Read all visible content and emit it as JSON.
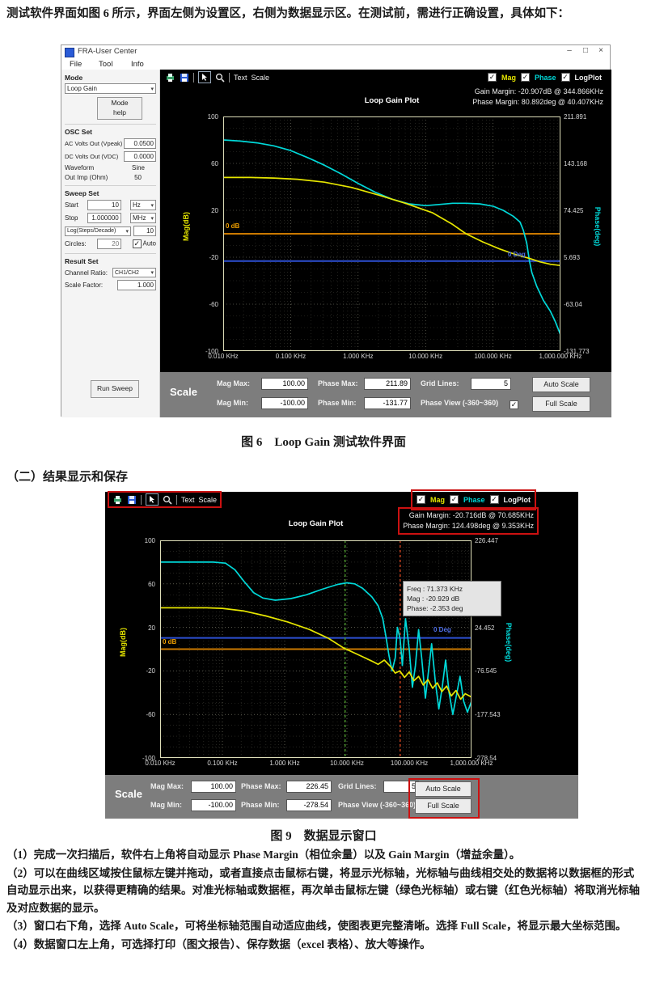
{
  "page": {
    "intro": "测试软件界面如图 6 所示，界面左侧为设置区，右侧为数据显示区。在测试前，需进行正确设置，具体如下：",
    "fig6_caption": "图 6　Loop Gain 测试软件界面",
    "section_heading": "（二）结果显示和保存",
    "fig9_caption": "图 9　数据显示窗口",
    "notes": [
      "（1）完成一次扫描后，软件右上角将自动显示 Phase Margin（相位余量）以及 Gain Margin（增益余量）。",
      "（2）可以在曲线区域按住鼠标左键并拖动，或者直接点击鼠标右键，将显示光标轴，光标轴与曲线相交处的数据将以数据框的形式自动显示出来，以获得更精确的结果。对准光标轴或数据框，再次单击鼠标左键（绿色光标轴）或右键（红色光标轴）将取消光标轴及对应数据的显示。",
      "（3）窗口右下角，选择 Auto Scale，可将坐标轴范围自动适应曲线，使图表更完整清晰。选择 Full Scale，将显示最大坐标范围。",
      "（4）数据窗口左上角，可选择打印（图文报告）、保存数据（excel 表格）、放大等操作。"
    ]
  },
  "icons": {
    "check": "✓",
    "caret": "▾"
  },
  "window": {
    "title": "FRA-User Center",
    "controls": {
      "min": "–",
      "max": "□",
      "close": "×"
    },
    "menu": [
      {
        "label": "File"
      },
      {
        "label": "Tool"
      },
      {
        "label": "Info"
      }
    ],
    "toolbar": {
      "text_menu": "Text",
      "scale_menu": "Scale",
      "mag": "Mag",
      "phase": "Phase",
      "logplot": "LogPlot"
    }
  },
  "panel": {
    "mode_title": "Mode",
    "mode_value": "Loop Gain",
    "mode_help": [
      "Mode",
      "help"
    ],
    "osc_title": "OSC Set",
    "ac_label": "AC Volts Out (Vpeak)",
    "ac_value": "0.0500",
    "dc_label": "DC Volts Out (VDC)",
    "dc_value": "0.0000",
    "wave_label": "Waveform",
    "wave_value": "Sine",
    "imp_label": "Out Imp (Ohm)",
    "imp_value": "50",
    "sweep_title": "Sweep Set",
    "start_label": "Start",
    "start_value": "10",
    "start_unit": "Hz",
    "stop_label": "Stop",
    "stop_value": "1.000000",
    "stop_unit": "MHz",
    "log_select": "Log(Steps/Decade)",
    "log_value": "10",
    "circles_label": "Circles:",
    "circles_value": "20",
    "auto_label": "Auto",
    "result_title": "Result Set",
    "channel_label": "Channel Ratio:",
    "channel_value": "CH1/CH2",
    "factor_label": "Scale Factor:",
    "factor_value": "1.000",
    "run_button": "Run Sweep"
  },
  "fig6_scale": {
    "title": "Scale",
    "mag_max_label": "Mag Max:",
    "mag_max": "100.00",
    "phase_max_label": "Phase Max:",
    "phase_max": "211.89",
    "grid_label": "Grid Lines:",
    "grid": "5",
    "auto_button": "Auto Scale",
    "mag_min_label": "Mag Min:",
    "mag_min": "-100.00",
    "phase_min_label": "Phase Min:",
    "phase_min": "-131.77",
    "view_label": "Phase View (-360~360)",
    "full_button": "Full Scale"
  },
  "fig9_scale": {
    "title": "Scale",
    "mag_max_label": "Mag Max:",
    "mag_max": "100.00",
    "phase_max_label": "Phase Max:",
    "phase_max": "226.45",
    "grid_label": "Grid Lines:",
    "grid": "5",
    "auto_button": "Auto Scale",
    "mag_min_label": "Mag Min:",
    "mag_min": "-100.00",
    "phase_min_label": "Phase Min:",
    "phase_min": "-278.54",
    "view_label": "Phase View (-360~360)",
    "full_button": "Full Scale"
  },
  "chart_data": [
    {
      "type": "line",
      "title": "Loop Gain Plot",
      "gain_margin": "Gain Margin: -20.907dB @ 344.866KHz",
      "phase_margin": "Phase Margin: 80.892deg @ 40.407KHz",
      "x_axis": {
        "scale": "log",
        "decades": 5,
        "tick_labels": [
          "0.010 KHz",
          "0.100 KHz",
          "1.000 KHz",
          "10.000 KHz",
          "100.000 KHz",
          "1,000.000 KHz"
        ]
      },
      "mag_axis": {
        "label": "Mag(dB)",
        "min": -100,
        "max": 100,
        "ticks": [
          100,
          60,
          20,
          -20,
          -60,
          -100
        ]
      },
      "phase_axis": {
        "label": "Phase(deg)",
        "tick_labels": [
          "211.891",
          "143.168",
          "74.425",
          "5.693",
          "-63.04",
          "-131.773"
        ]
      },
      "ref_lines": [
        {
          "y": 0,
          "color": "#cc7a00",
          "label": "0 dB"
        },
        {
          "y": -23.3,
          "color": "#2d4fd2",
          "label": "0 Deg"
        }
      ],
      "cursors": [],
      "series": [
        {
          "name": "Phase",
          "color": "#00d9d9",
          "points": [
            [
              0,
              80
            ],
            [
              0.05,
              79
            ],
            [
              0.1,
              77.5
            ],
            [
              0.15,
              75
            ],
            [
              0.2,
              71
            ],
            [
              0.25,
              65
            ],
            [
              0.3,
              58.5
            ],
            [
              0.35,
              51
            ],
            [
              0.4,
              43
            ],
            [
              0.45,
              35.5
            ],
            [
              0.5,
              29.5
            ],
            [
              0.55,
              25.5
            ],
            [
              0.6,
              24
            ],
            [
              0.64,
              25
            ],
            [
              0.68,
              26
            ],
            [
              0.72,
              26
            ],
            [
              0.76,
              25.5
            ],
            [
              0.8,
              23.5
            ],
            [
              0.83,
              20
            ],
            [
              0.86,
              15
            ],
            [
              0.88,
              10
            ],
            [
              0.89,
              3
            ],
            [
              0.9,
              -8
            ],
            [
              0.908,
              -23
            ],
            [
              0.915,
              -33
            ],
            [
              0.93,
              -45
            ],
            [
              0.95,
              -57
            ],
            [
              0.97,
              -66
            ],
            [
              0.985,
              -75
            ],
            [
              1,
              -86
            ]
          ]
        },
        {
          "name": "Mag",
          "color": "#e6e600",
          "points": [
            [
              0,
              48
            ],
            [
              0.08,
              48
            ],
            [
              0.15,
              47.5
            ],
            [
              0.22,
              46.5
            ],
            [
              0.3,
              44
            ],
            [
              0.38,
              39.5
            ],
            [
              0.46,
              33
            ],
            [
              0.54,
              26
            ],
            [
              0.62,
              18
            ],
            [
              0.68,
              8
            ],
            [
              0.72,
              0
            ],
            [
              0.77,
              -7
            ],
            [
              0.82,
              -13
            ],
            [
              0.87,
              -18
            ],
            [
              0.908,
              -21
            ],
            [
              0.94,
              -24
            ],
            [
              0.97,
              -26
            ],
            [
              1,
              -27
            ]
          ]
        }
      ]
    },
    {
      "type": "line",
      "title": "Loop Gain Plot",
      "gain_margin": "Gain Margin: -20.716dB @ 70.685KHz",
      "phase_margin": "Phase Margin: 124.498deg @ 9.353KHz",
      "x_axis": {
        "scale": "log",
        "decades": 5,
        "tick_labels": [
          "0.010 KHz",
          "0.100 KHz",
          "1.000 KHz",
          "10.000 KHz",
          "100.000 KHz",
          "1,000.000 KHz"
        ]
      },
      "mag_axis": {
        "label": "Mag(dB)",
        "min": -100,
        "max": 100,
        "ticks": [
          100,
          60,
          20,
          -20,
          -60,
          -100
        ]
      },
      "phase_axis": {
        "label": "Phase(deg)",
        "tick_labels": [
          "226.447",
          "125.45",
          "24.452",
          "-76.545",
          "-177.543",
          "-278.54"
        ]
      },
      "ref_lines": [
        {
          "y": 0,
          "color": "#cc7a00",
          "label": "0 dB"
        },
        {
          "y": 10.3,
          "color": "#2d4fd2",
          "label": "0 Deg"
        }
      ],
      "cursors": [
        {
          "x": 0.594,
          "color": "#4f9e2f",
          "name": "green-cursor"
        },
        {
          "x": 0.771,
          "color": "#d2431e",
          "name": "red-cursor"
        }
      ],
      "tooltip": {
        "freq": "Freq : 71.373 KHz",
        "mag": "Mag : -20.929 dB",
        "phase": "Phase: -2.353 deg"
      },
      "series": [
        {
          "name": "Phase",
          "color": "#00d9d9",
          "points": [
            [
              0,
              80
            ],
            [
              0.17,
              80
            ],
            [
              0.21,
              79
            ],
            [
              0.24,
              73
            ],
            [
              0.27,
              62
            ],
            [
              0.3,
              52
            ],
            [
              0.33,
              47
            ],
            [
              0.37,
              45
            ],
            [
              0.42,
              46.5
            ],
            [
              0.47,
              50
            ],
            [
              0.52,
              55
            ],
            [
              0.57,
              59.5
            ],
            [
              0.6,
              61
            ],
            [
              0.625,
              60
            ],
            [
              0.65,
              56
            ],
            [
              0.68,
              48
            ],
            [
              0.7,
              40
            ],
            [
              0.715,
              28
            ],
            [
              0.725,
              12
            ],
            [
              0.735,
              -6
            ],
            [
              0.745,
              -20
            ],
            [
              0.755,
              -8
            ],
            [
              0.762,
              20
            ],
            [
              0.771,
              9
            ],
            [
              0.778,
              -15
            ],
            [
              0.788,
              28
            ],
            [
              0.8,
              0
            ],
            [
              0.81,
              -35
            ],
            [
              0.82,
              -15
            ],
            [
              0.83,
              18
            ],
            [
              0.84,
              -8
            ],
            [
              0.852,
              -45
            ],
            [
              0.862,
              -20
            ],
            [
              0.872,
              5
            ],
            [
              0.884,
              -30
            ],
            [
              0.895,
              -55
            ],
            [
              0.906,
              -35
            ],
            [
              0.917,
              -10
            ],
            [
              0.928,
              -40
            ],
            [
              0.94,
              -60
            ],
            [
              0.952,
              -42
            ],
            [
              0.963,
              -25
            ],
            [
              0.975,
              -48
            ],
            [
              0.987,
              -58
            ],
            [
              1,
              -48
            ]
          ]
        },
        {
          "name": "Mag",
          "color": "#e6e600",
          "points": [
            [
              0,
              38
            ],
            [
              0.15,
              38
            ],
            [
              0.2,
              37.5
            ],
            [
              0.27,
              35
            ],
            [
              0.34,
              30.5
            ],
            [
              0.41,
              25
            ],
            [
              0.48,
              18
            ],
            [
              0.54,
              10
            ],
            [
              0.59,
              1
            ],
            [
              0.62,
              -3
            ],
            [
              0.65,
              -7
            ],
            [
              0.68,
              -11
            ],
            [
              0.7,
              -14
            ],
            [
              0.72,
              -10
            ],
            [
              0.74,
              -16
            ],
            [
              0.755,
              -22
            ],
            [
              0.77,
              -20
            ],
            [
              0.785,
              -26
            ],
            [
              0.8,
              -21
            ],
            [
              0.815,
              -29
            ],
            [
              0.83,
              -25
            ],
            [
              0.845,
              -33
            ],
            [
              0.86,
              -28
            ],
            [
              0.875,
              -36
            ],
            [
              0.89,
              -31
            ],
            [
              0.905,
              -39
            ],
            [
              0.92,
              -34
            ],
            [
              0.935,
              -43
            ],
            [
              0.95,
              -38
            ],
            [
              0.965,
              -46
            ],
            [
              0.98,
              -41
            ],
            [
              1,
              -44
            ]
          ]
        }
      ]
    }
  ]
}
